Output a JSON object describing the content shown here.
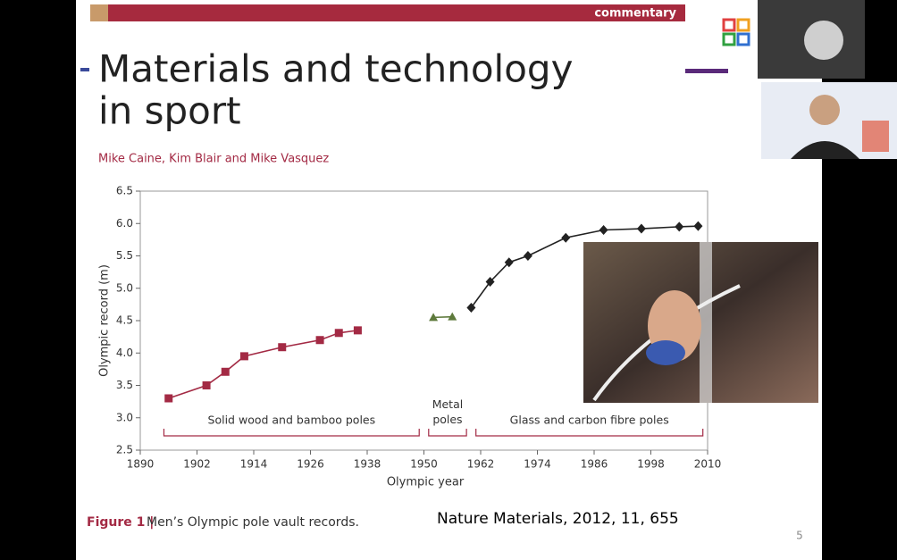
{
  "slide": {
    "header": "commentary",
    "title_lines": [
      "Materials and technology",
      "in sport"
    ],
    "authors": "Mike Caine, Kim Blair and Mike Vasquez",
    "figure_label": "Figure 1 |",
    "caption": "Men’s Olympic pole vault records.",
    "reference": "Nature Materials, 2012, 11, 655",
    "page_number": "5"
  },
  "chart_data": {
    "type": "line",
    "x_label": "Olympic year",
    "y_label": "Olympic record (m)",
    "xlim": [
      1890,
      2010
    ],
    "xticks": [
      1890,
      1902,
      1914,
      1926,
      1938,
      1950,
      1962,
      1974,
      1986,
      1998,
      2010
    ],
    "ylim": [
      2.5,
      6.5
    ],
    "yticks": [
      2.5,
      {
        "value": 3,
        "label": "3.0"
      },
      3.5,
      {
        "value": 4,
        "label": "4.0"
      },
      4.5,
      {
        "value": 5,
        "label": "5.0"
      },
      5.5,
      {
        "value": 6,
        "label": "6.0"
      },
      6.5
    ],
    "series": [
      {
        "color": "#a32a44",
        "marker": "square",
        "x": [
          1896,
          1904,
          1908,
          1912,
          1920,
          1928,
          1932,
          1936
        ],
        "values": [
          3.3,
          3.5,
          3.71,
          3.95,
          4.09,
          4.2,
          4.31,
          4.35
        ]
      },
      {
        "color": "#5e7a3c",
        "marker": "triangle",
        "x": [
          1952,
          1956
        ],
        "values": [
          4.55,
          4.56
        ]
      },
      {
        "color": "#222222",
        "marker": "diamond",
        "x": [
          1960,
          1964,
          1968,
          1972,
          1980,
          1988,
          1996,
          2004,
          2008
        ],
        "values": [
          4.7,
          5.1,
          5.4,
          5.5,
          5.78,
          5.9,
          5.92,
          5.95,
          5.96
        ]
      }
    ],
    "annotations": [
      {
        "text": "Solid wood and bamboo poles",
        "span": [
          1895,
          1949
        ]
      },
      {
        "text": "Metal poles",
        "span": [
          1951,
          1959
        ]
      },
      {
        "text": "Glass and carbon fibre poles",
        "span": [
          1961,
          2009
        ]
      }
    ]
  }
}
